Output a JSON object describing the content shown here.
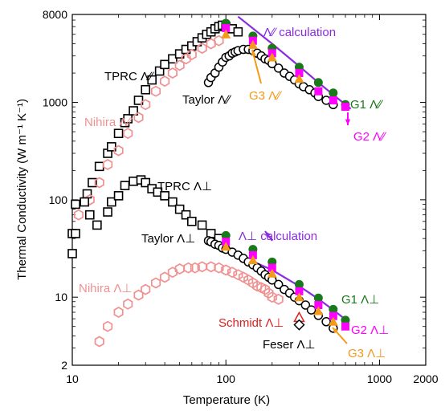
{
  "chart_data": {
    "type": "scatter",
    "title": "",
    "xlabel": "Temperature (K)",
    "ylabel": "Thermal Conductivity (W m⁻¹ K⁻¹)",
    "xscale": "log",
    "yscale": "log",
    "xlim": [
      10,
      2000
    ],
    "ylim": [
      2,
      8000
    ],
    "x_ticks": [
      10,
      100,
      1000,
      2000
    ],
    "x_tick_labels": [
      "10",
      "100",
      "1000",
      "2000"
    ],
    "y_ticks": [
      2,
      10,
      100,
      1000,
      8000
    ],
    "y_tick_labels": [
      "2",
      "10",
      "100",
      "1000",
      "8000"
    ],
    "grid": false,
    "legend": "none",
    "series": [
      {
        "name": "TPRC Λ∕∕",
        "marker": "open-square",
        "color": "#000000",
        "x": [
          10,
          10.5,
          12.5,
          13.5,
          15,
          17,
          18,
          20,
          22,
          23,
          25,
          27,
          30,
          33,
          37,
          40,
          45,
          50,
          55,
          60,
          65,
          70,
          75,
          80,
          85,
          90,
          95,
          100,
          110,
          120
        ],
        "y": [
          45,
          90,
          115,
          150,
          220,
          300,
          350,
          480,
          620,
          680,
          820,
          1050,
          1350,
          1700,
          2100,
          2450,
          2800,
          3150,
          3500,
          3800,
          4200,
          4600,
          5000,
          5300,
          5700,
          6000,
          6200,
          6000,
          5700,
          5300
        ]
      },
      {
        "name": "Nihira Λ∕∕",
        "marker": "open-hexagon",
        "color": "#f09090",
        "x": [
          11,
          13,
          15,
          17,
          20,
          23,
          27,
          30,
          35,
          40,
          45,
          50,
          55,
          60,
          70,
          80,
          90
        ],
        "y": [
          70,
          100,
          150,
          230,
          320,
          480,
          700,
          950,
          1300,
          1650,
          2000,
          2400,
          2800,
          3100,
          3600,
          4000,
          4300
        ]
      },
      {
        "name": "Taylor Λ∕∕",
        "marker": "open-circle",
        "color": "#000000",
        "x": [
          77,
          80,
          85,
          90,
          95,
          100,
          105,
          110,
          115,
          120,
          130,
          140,
          150,
          160,
          170,
          180,
          190,
          200,
          220,
          240,
          260,
          280,
          300,
          320,
          350,
          380,
          400,
          450,
          500
        ],
        "y": [
          1600,
          1800,
          2000,
          2300,
          2600,
          2900,
          3000,
          3200,
          3300,
          3400,
          3500,
          3500,
          3400,
          3200,
          3000,
          2800,
          2700,
          2500,
          2250,
          2000,
          1850,
          1700,
          1550,
          1450,
          1350,
          1250,
          1150,
          1050,
          950
        ]
      },
      {
        "name": "G1 Λ∕∕",
        "marker": "filled-circle",
        "color": "#1a7a1a",
        "x": [
          100,
          150,
          200,
          300,
          400,
          500,
          600
        ],
        "y": [
          6500,
          4800,
          3600,
          2300,
          1600,
          1250,
          950
        ]
      },
      {
        "name": "G2 Λ∕∕",
        "marker": "filled-square",
        "color": "#ff00ff",
        "x": [
          100,
          150,
          200,
          300,
          400,
          500,
          600
        ],
        "y": [
          5800,
          4300,
          3200,
          2000,
          1300,
          1050,
          900
        ]
      },
      {
        "name": "G3 Λ∕∕",
        "marker": "filled-triangle",
        "color": "#f39a1a",
        "x": [
          100,
          150,
          200,
          300
        ],
        "y": [
          5000,
          3900,
          2900,
          1750
        ]
      },
      {
        "name": "Λ∕∕ calculation",
        "type": "line",
        "color": "#8a2be2",
        "x": [
          120,
          200,
          300,
          400,
          500,
          600,
          650
        ],
        "y": [
          7600,
          4000,
          2350,
          1600,
          1200,
          950,
          860
        ]
      },
      {
        "name": "TPRC Λ⊥",
        "marker": "open-square",
        "color": "#000000",
        "x": [
          10,
          10.5,
          12,
          13,
          14.5,
          17,
          18,
          20,
          22,
          25,
          28,
          30,
          33,
          36,
          40,
          45,
          50,
          55,
          60,
          70,
          80,
          90
        ],
        "y": [
          28,
          45,
          95,
          70,
          55,
          75,
          95,
          110,
          140,
          155,
          160,
          150,
          130,
          120,
          110,
          95,
          80,
          70,
          60,
          55,
          45,
          40
        ]
      },
      {
        "name": "Nihira Λ⊥",
        "marker": "open-hexagon",
        "color": "#f09090",
        "x": [
          15,
          17,
          20,
          23,
          27,
          30,
          35,
          40,
          45,
          50,
          57,
          63,
          70,
          80,
          90,
          100,
          110,
          120,
          130,
          140,
          150,
          160,
          170,
          180,
          190,
          200,
          220
        ],
        "y": [
          3.5,
          5,
          7,
          8.5,
          10.5,
          12,
          14,
          16,
          18,
          19.5,
          20,
          20,
          20.5,
          20.5,
          20,
          19,
          18,
          17,
          16,
          15,
          14,
          13,
          12.5,
          12,
          11,
          10,
          9.5
        ]
      },
      {
        "name": "Taylor Λ⊥",
        "marker": "open-circle",
        "color": "#000000",
        "x": [
          77,
          80,
          85,
          90,
          95,
          100,
          110,
          120,
          130,
          140,
          150,
          160,
          170,
          180,
          190,
          200,
          220,
          240,
          260,
          280,
          300,
          330,
          360,
          400,
          450,
          500
        ],
        "y": [
          38,
          37,
          35,
          34,
          32,
          31,
          29,
          27,
          25,
          23,
          21.5,
          20,
          18.5,
          17,
          16,
          15,
          13.5,
          12,
          11,
          10,
          9.2,
          8.3,
          7.4,
          6.5,
          5.6,
          4.8
        ]
      },
      {
        "name": "G1 Λ⊥",
        "marker": "filled-circle",
        "color": "#1a7a1a",
        "x": [
          100,
          150,
          200,
          300,
          400,
          500,
          600
        ],
        "y": [
          43,
          31,
          23,
          13.5,
          9.8,
          7.5,
          5.8
        ]
      },
      {
        "name": "G2 Λ⊥",
        "marker": "filled-square",
        "color": "#ff00ff",
        "x": [
          100,
          150,
          200,
          300,
          400,
          500,
          600
        ],
        "y": [
          37,
          27,
          20,
          11.5,
          8.3,
          6.4,
          5
        ]
      },
      {
        "name": "G3 Λ⊥",
        "marker": "filled-triangle",
        "color": "#f39a1a",
        "x": [
          100,
          150,
          200,
          300,
          400,
          500
        ],
        "y": [
          33,
          24,
          17.5,
          10,
          7.2,
          5.6
        ]
      },
      {
        "name": "Schmidt Λ⊥",
        "marker": "open-triangle",
        "color": "#e02020",
        "x": [
          300
        ],
        "y": [
          6.2
        ]
      },
      {
        "name": "Feser Λ⊥",
        "marker": "open-diamond",
        "color": "#000000",
        "x": [
          300
        ],
        "y": [
          5.2
        ]
      },
      {
        "name": "Λ⊥ calculation",
        "type": "line",
        "color": "#8a2be2",
        "x": [
          100,
          200,
          300,
          400,
          500,
          600
        ],
        "y": [
          31,
          19,
          13,
          9.6,
          7.4,
          5.9
        ]
      }
    ],
    "annotations": [
      {
        "text": "TPRC Λ∕∕",
        "color": "#000000",
        "x": 50,
        "y": 3000
      },
      {
        "text": "Nihira Λ∕∕",
        "color": "#f09090",
        "x": 40,
        "y": 700
      },
      {
        "text": "Taylor Λ∕∕",
        "color": "#000000",
        "x": 85,
        "y": 950
      },
      {
        "text": "Λ∕∕ calculation",
        "color": "#8a2be2",
        "x": 300,
        "y": 6600
      },
      {
        "text": "G3 Λ∕∕",
        "color": "#f39a1a",
        "x": 160,
        "y": 1150
      },
      {
        "text": "G1 Λ∕∕",
        "color": "#1a7a1a",
        "x": 800,
        "y": 1000
      },
      {
        "text": "G2 Λ∕∕",
        "color": "#ff00ff",
        "x": 800,
        "y": 560
      },
      {
        "text": "TPRC Λ⊥",
        "color": "#000000",
        "x": 130,
        "y": 150
      },
      {
        "text": "Taylor Λ⊥",
        "color": "#000000",
        "x": 60,
        "y": 40
      },
      {
        "text": "Λ⊥ calculation",
        "color": "#8a2be2",
        "x": 280,
        "y": 43
      },
      {
        "text": "Nihira Λ⊥",
        "color": "#f09090",
        "x": 25,
        "y": 11
      },
      {
        "text": "G1 Λ⊥",
        "color": "#1a7a1a",
        "x": 800,
        "y": 9
      },
      {
        "text": "Schmidt Λ⊥",
        "color": "#e02020",
        "x": 200,
        "y": 6
      },
      {
        "text": "G2 Λ⊥",
        "color": "#ff00ff",
        "x": 800,
        "y": 5.3
      },
      {
        "text": "Feser Λ⊥",
        "color": "#000000",
        "x": 230,
        "y": 4
      },
      {
        "text": "G3 Λ⊥",
        "color": "#f39a1a",
        "x": 800,
        "y": 3.2
      }
    ]
  }
}
